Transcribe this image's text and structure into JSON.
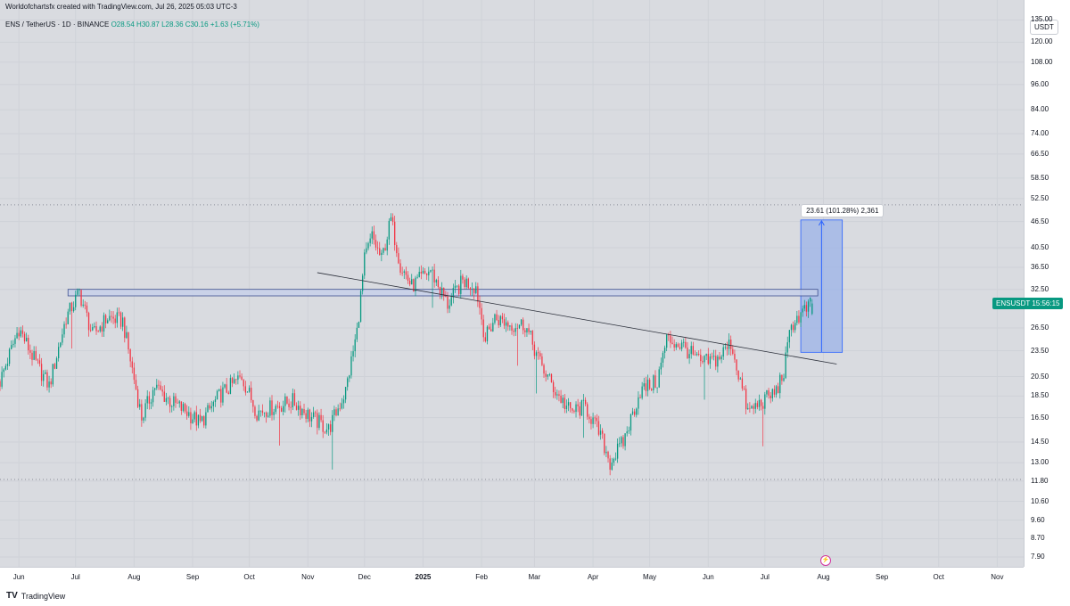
{
  "header": {
    "attribution": "Worldofchartsfx created with TradingView.com, Jul 26, 2025 05:03 UTC-3"
  },
  "symbol": {
    "title": "ENS / TetherUS · 1D · BINANCE",
    "open": "O28.54",
    "high": "H30.87",
    "low": "L28.36",
    "close": "C30.16",
    "change": "+1.63 (+5.71%)"
  },
  "price_scale": {
    "currency": "USDT",
    "labels": [
      "135.00",
      "120.00",
      "108.00",
      "96.00",
      "84.00",
      "74.00",
      "66.50",
      "58.50",
      "52.50",
      "46.50",
      "40.50",
      "36.50",
      "32.50",
      "26.50",
      "23.50",
      "20.50",
      "18.50",
      "16.50",
      "14.50",
      "13.00",
      "11.80",
      "10.60",
      "9.60",
      "8.70",
      "7.90"
    ]
  },
  "current_price_tag": {
    "symbol": "ENSUSDT",
    "countdown": "15:56:15"
  },
  "time_scale": {
    "labels": [
      "Jun",
      "Jul",
      "Aug",
      "Sep",
      "Oct",
      "Nov",
      "Dec",
      "2025",
      "Feb",
      "Mar",
      "Apr",
      "May",
      "Jun",
      "Jul",
      "Aug",
      "Sep",
      "Oct",
      "Nov"
    ]
  },
  "measure": {
    "label": "23.61 (101.28%) 2,361"
  },
  "branding": {
    "logo_text": "TradingView"
  },
  "colors": {
    "up": "#089981",
    "down": "#f23645",
    "background": "#d9dbe0",
    "measure_fill": "#9bb3e8"
  },
  "chart_data": {
    "type": "candlestick",
    "title": "ENS / TetherUS · 1D · BINANCE",
    "ylabel": "USDT",
    "yscale": "log",
    "ylim": [
      7.5,
      150
    ],
    "x_range": [
      "2024-05-22",
      "2025-11-15"
    ],
    "close_path": [
      [
        "2024-05-22",
        20.0
      ],
      [
        "2024-06-01",
        26.5
      ],
      [
        "2024-06-10",
        22.0
      ],
      [
        "2024-06-17",
        19.5
      ],
      [
        "2024-06-26",
        28.0
      ],
      [
        "2024-07-03",
        32.0
      ],
      [
        "2024-07-10",
        25.5
      ],
      [
        "2024-07-18",
        28.0
      ],
      [
        "2024-07-26",
        27.5
      ],
      [
        "2024-08-05",
        16.5
      ],
      [
        "2024-08-12",
        19.5
      ],
      [
        "2024-08-20",
        18.0
      ],
      [
        "2024-08-29",
        17.0
      ],
      [
        "2024-09-05",
        16.0
      ],
      [
        "2024-09-15",
        18.5
      ],
      [
        "2024-09-27",
        20.5
      ],
      [
        "2024-10-05",
        17.0
      ],
      [
        "2024-10-15",
        17.5
      ],
      [
        "2024-10-24",
        18.0
      ],
      [
        "2024-11-03",
        16.5
      ],
      [
        "2024-11-12",
        15.5
      ],
      [
        "2024-11-21",
        19.0
      ],
      [
        "2024-11-27",
        26.0
      ],
      [
        "2024-12-01",
        38.0
      ],
      [
        "2024-12-05",
        43.0
      ],
      [
        "2024-12-10",
        38.0
      ],
      [
        "2024-12-15",
        47.0
      ],
      [
        "2024-12-20",
        37.0
      ],
      [
        "2024-12-26",
        33.0
      ],
      [
        "2025-01-05",
        36.0
      ],
      [
        "2025-01-14",
        30.0
      ],
      [
        "2025-01-22",
        34.0
      ],
      [
        "2025-01-29",
        33.0
      ],
      [
        "2025-02-03",
        25.0
      ],
      [
        "2025-02-08",
        28.0
      ],
      [
        "2025-02-16",
        27.0
      ],
      [
        "2025-02-24",
        27.0
      ],
      [
        "2025-03-04",
        22.0
      ],
      [
        "2025-03-12",
        19.0
      ],
      [
        "2025-03-20",
        17.0
      ],
      [
        "2025-03-28",
        17.5
      ],
      [
        "2025-04-05",
        15.0
      ],
      [
        "2025-04-10",
        13.0
      ],
      [
        "2025-04-17",
        14.5
      ],
      [
        "2025-04-26",
        19.0
      ],
      [
        "2025-05-05",
        20.0
      ],
      [
        "2025-05-10",
        25.0
      ],
      [
        "2025-05-19",
        24.0
      ],
      [
        "2025-05-28",
        22.0
      ],
      [
        "2025-06-06",
        22.5
      ],
      [
        "2025-06-13",
        24.5
      ],
      [
        "2025-06-22",
        17.0
      ],
      [
        "2025-06-30",
        18.0
      ],
      [
        "2025-07-07",
        19.0
      ],
      [
        "2025-07-11",
        21.0
      ],
      [
        "2025-07-15",
        27.0
      ],
      [
        "2025-07-22",
        29.0
      ],
      [
        "2025-07-26",
        30.16
      ]
    ],
    "candles": {
      "start": "2024-05-22",
      "end": "2025-07-26",
      "last": {
        "date": "2025-07-26",
        "open": 28.54,
        "high": 30.87,
        "low": 28.36,
        "close": 30.16
      }
    },
    "annotations": {
      "resistance_zone": {
        "from": "2024-06-27",
        "to": "2025-07-29",
        "low": 31.4,
        "high": 32.5
      },
      "trendline": {
        "start": [
          "2024-11-06",
          35.5
        ],
        "end": [
          "2025-08-08",
          21.9
        ]
      },
      "measure_box": {
        "from": "2025-07-20",
        "to": "2025-08-11",
        "low": 23.3,
        "high": 46.9
      },
      "dotted_levels": [
        50.8,
        11.9
      ]
    }
  }
}
